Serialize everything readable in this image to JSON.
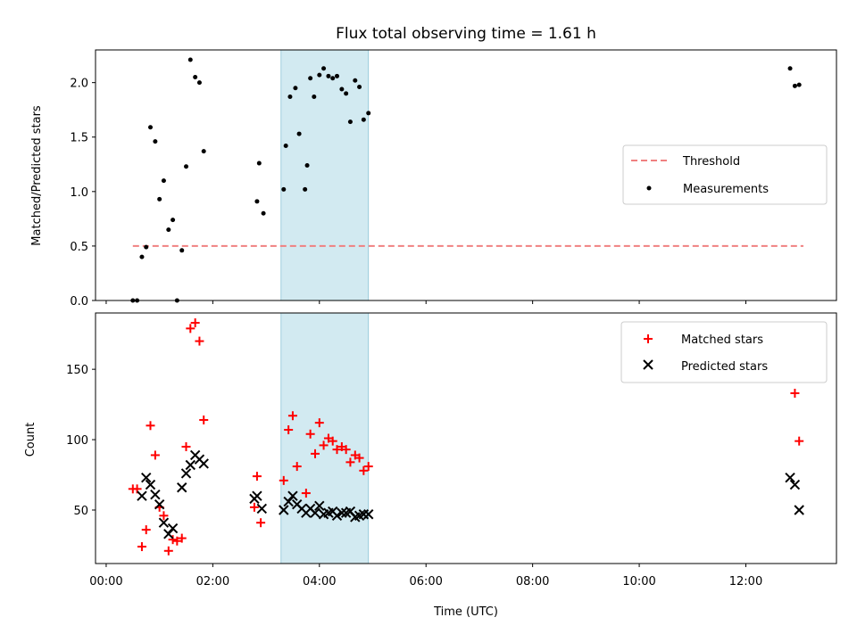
{
  "chart_data": {
    "title": "Flux total observing time = 1.61 h",
    "shared_x": {
      "label": "Time (UTC)",
      "unit": "hours since 00:00 UTC",
      "range": [
        -0.2,
        13.7
      ],
      "ticks": [
        0,
        2,
        4,
        6,
        8,
        10,
        12
      ],
      "tick_labels": [
        "00:00",
        "02:00",
        "04:00",
        "06:00",
        "08:00",
        "10:00",
        "12:00"
      ]
    },
    "highlight_span": {
      "x_start": 3.28,
      "x_end": 4.92,
      "color": "#add8e6"
    },
    "panels": [
      {
        "type": "scatter",
        "ylabel": "Matched/Predicted stars",
        "ylim": [
          0,
          2.3
        ],
        "yticks": [
          0.0,
          0.5,
          1.0,
          1.5,
          2.0
        ],
        "ytick_labels": [
          "0.0",
          "0.5",
          "1.0",
          "1.5",
          "2.0"
        ],
        "legend_position": "center-right",
        "threshold": {
          "name": "Threshold",
          "value": 0.5,
          "x_range": [
            0.5,
            13.08
          ],
          "color": "#f08080",
          "style": "dashed"
        },
        "series": [
          {
            "name": "Measurements",
            "marker": "dot",
            "color": "#000000",
            "points": [
              [
                0.5,
                0.0
              ],
              [
                0.58,
                0.0
              ],
              [
                0.67,
                0.4
              ],
              [
                0.75,
                0.49
              ],
              [
                0.83,
                1.59
              ],
              [
                0.92,
                1.46
              ],
              [
                1.0,
                0.93
              ],
              [
                1.08,
                1.1
              ],
              [
                1.17,
                0.65
              ],
              [
                1.25,
                0.74
              ],
              [
                1.33,
                0.0
              ],
              [
                1.42,
                0.46
              ],
              [
                1.5,
                1.23
              ],
              [
                1.58,
                2.21
              ],
              [
                1.67,
                2.05
              ],
              [
                1.75,
                2.0
              ],
              [
                1.83,
                1.37
              ],
              [
                2.83,
                0.91
              ],
              [
                2.87,
                1.26
              ],
              [
                2.95,
                0.8
              ],
              [
                3.33,
                1.02
              ],
              [
                3.37,
                1.42
              ],
              [
                3.45,
                1.87
              ],
              [
                3.55,
                1.95
              ],
              [
                3.62,
                1.53
              ],
              [
                3.73,
                1.02
              ],
              [
                3.77,
                1.24
              ],
              [
                3.83,
                2.04
              ],
              [
                3.9,
                1.87
              ],
              [
                4.0,
                2.07
              ],
              [
                4.08,
                2.13
              ],
              [
                4.17,
                2.06
              ],
              [
                4.25,
                2.04
              ],
              [
                4.33,
                2.06
              ],
              [
                4.42,
                1.94
              ],
              [
                4.5,
                1.9
              ],
              [
                4.58,
                1.64
              ],
              [
                4.67,
                2.02
              ],
              [
                4.75,
                1.96
              ],
              [
                4.83,
                1.66
              ],
              [
                4.92,
                1.72
              ],
              [
                12.83,
                2.13
              ],
              [
                12.92,
                1.97
              ],
              [
                13.0,
                1.98
              ]
            ]
          }
        ]
      },
      {
        "type": "scatter",
        "ylabel": "Count",
        "ylim": [
          12,
          190
        ],
        "yticks": [
          50,
          100,
          150
        ],
        "ytick_labels": [
          "50",
          "100",
          "150"
        ],
        "legend_position": "top-right",
        "series": [
          {
            "name": "Matched stars",
            "marker": "plus",
            "color": "#ff0000",
            "points": [
              [
                0.5,
                65
              ],
              [
                0.58,
                65
              ],
              [
                0.67,
                24
              ],
              [
                0.75,
                36
              ],
              [
                0.83,
                110
              ],
              [
                0.92,
                89
              ],
              [
                1.0,
                52
              ],
              [
                1.08,
                46
              ],
              [
                1.17,
                21
              ],
              [
                1.25,
                29
              ],
              [
                1.33,
                28
              ],
              [
                1.42,
                30
              ],
              [
                1.5,
                95
              ],
              [
                1.58,
                179
              ],
              [
                1.67,
                183
              ],
              [
                1.75,
                170
              ],
              [
                1.83,
                114
              ],
              [
                2.78,
                52
              ],
              [
                2.83,
                74
              ],
              [
                2.9,
                41
              ],
              [
                3.33,
                71
              ],
              [
                3.42,
                107
              ],
              [
                3.5,
                117
              ],
              [
                3.58,
                81
              ],
              [
                3.75,
                62
              ],
              [
                3.83,
                104
              ],
              [
                3.92,
                90
              ],
              [
                4.0,
                112
              ],
              [
                4.08,
                96
              ],
              [
                4.17,
                101
              ],
              [
                4.25,
                99
              ],
              [
                4.33,
                93
              ],
              [
                4.42,
                95
              ],
              [
                4.5,
                93
              ],
              [
                4.58,
                84
              ],
              [
                4.67,
                89
              ],
              [
                4.75,
                87
              ],
              [
                4.83,
                78
              ],
              [
                4.92,
                81
              ],
              [
                12.92,
                133
              ],
              [
                13.0,
                99
              ]
            ]
          },
          {
            "name": "Predicted stars",
            "marker": "x",
            "color": "#000000",
            "points": [
              [
                0.67,
                60
              ],
              [
                0.75,
                73
              ],
              [
                0.83,
                68
              ],
              [
                0.92,
                61
              ],
              [
                1.0,
                54
              ],
              [
                1.08,
                41
              ],
              [
                1.17,
                33
              ],
              [
                1.25,
                37
              ],
              [
                1.42,
                66
              ],
              [
                1.5,
                76
              ],
              [
                1.58,
                82
              ],
              [
                1.67,
                89
              ],
              [
                1.75,
                86
              ],
              [
                1.83,
                83
              ],
              [
                2.78,
                58
              ],
              [
                2.83,
                60
              ],
              [
                2.92,
                51
              ],
              [
                3.33,
                50
              ],
              [
                3.42,
                56
              ],
              [
                3.5,
                60
              ],
              [
                3.58,
                54
              ],
              [
                3.67,
                51
              ],
              [
                3.75,
                48
              ],
              [
                3.83,
                51
              ],
              [
                3.92,
                48
              ],
              [
                4.0,
                53
              ],
              [
                4.08,
                47
              ],
              [
                4.17,
                48
              ],
              [
                4.25,
                49
              ],
              [
                4.33,
                46
              ],
              [
                4.42,
                48
              ],
              [
                4.5,
                48
              ],
              [
                4.58,
                49
              ],
              [
                4.67,
                45
              ],
              [
                4.75,
                46
              ],
              [
                4.83,
                47
              ],
              [
                4.92,
                47
              ],
              [
                12.83,
                73
              ],
              [
                12.92,
                68
              ],
              [
                13.0,
                50
              ]
            ]
          }
        ]
      }
    ]
  }
}
